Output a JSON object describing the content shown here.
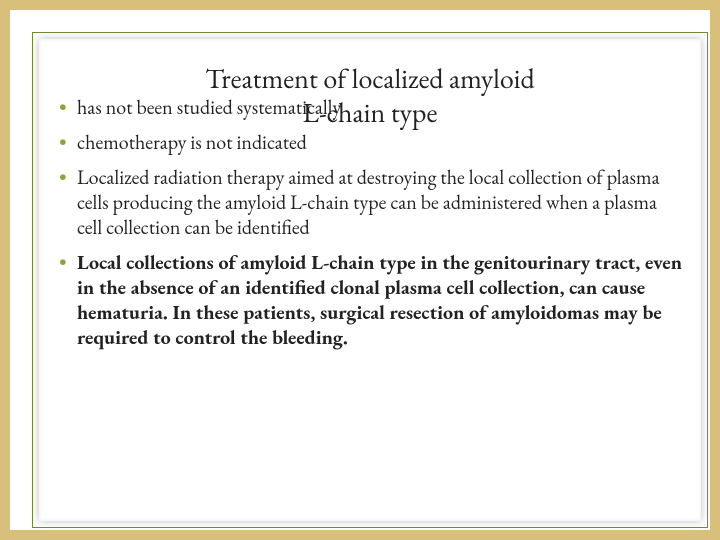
{
  "slide": {
    "title_line1": "Treatment of localized amyloid",
    "title_line2": "L-chain type",
    "background_color": "#d8bf7a",
    "paper_color": "#ffffff",
    "border_color": "#6f8e2e",
    "bullet_color": "#8aa63b",
    "title_fontsize": 28,
    "body_fontsize": 20,
    "bullets": [
      {
        "text": "has not been studied systematically",
        "bold": false
      },
      {
        "text": "chemotherapy is not indicated",
        "bold": false
      },
      {
        "text": "Localized radiation therapy aimed at destroying the local collection of plasma cells producing the amyloid L-chain type can be administered when a plasma cell collection can be identified",
        "bold": false
      },
      {
        "text": "Local collections of amyloid L-chain type in the genitourinary tract, even in the absence of an identified clonal plasma cell collection, can cause hematuria. In these patients, surgical resection of amyloidomas may be required to control the bleeding.",
        "bold": true
      }
    ]
  }
}
